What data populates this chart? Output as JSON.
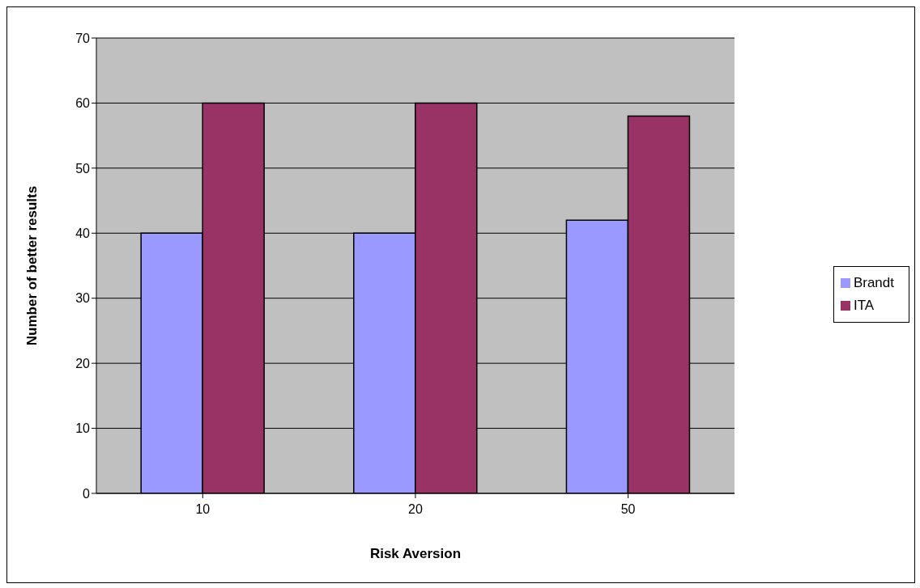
{
  "chart_data": {
    "type": "bar",
    "xlabel": "Risk Aversion",
    "ylabel": "Number of better results",
    "categories": [
      "10",
      "20",
      "50"
    ],
    "series": [
      {
        "name": "Brandt",
        "color": "#9999ff",
        "values": [
          40,
          40,
          42
        ]
      },
      {
        "name": "ITA",
        "color": "#993366",
        "values": [
          60,
          60,
          58
        ]
      }
    ],
    "ylim": [
      0,
      70
    ],
    "yticks": [
      0,
      10,
      20,
      30,
      40,
      50,
      60,
      70
    ],
    "grid": "y",
    "legend": "right"
  }
}
